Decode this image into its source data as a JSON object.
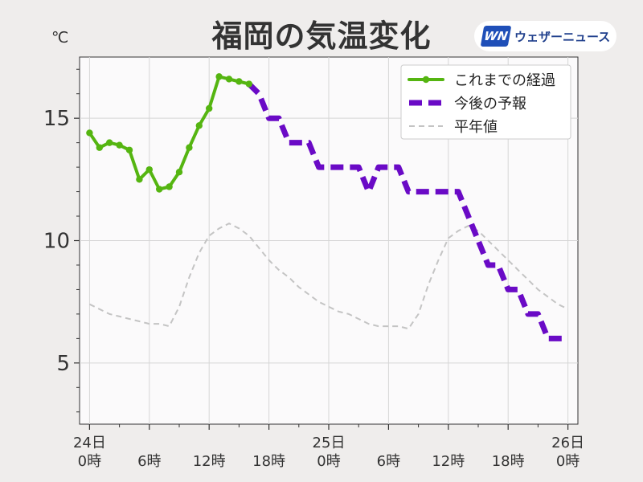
{
  "header": {
    "title": "福岡の気温変化",
    "unit": "℃",
    "brand_logo": "WN",
    "brand_name": "ウェザーニュース"
  },
  "chart_data": {
    "type": "line",
    "title": "福岡の気温変化",
    "ylabel": "℃",
    "xlabel": "",
    "ylim": [
      2.5,
      17.5
    ],
    "xlim": [
      -1,
      49
    ],
    "grid": true,
    "legend_position": "top-right",
    "y_ticks": [
      5,
      10,
      15
    ],
    "x_ticks": [
      {
        "x": 0,
        "label": [
          "24日",
          "0時"
        ]
      },
      {
        "x": 6,
        "label": [
          "",
          "6時"
        ]
      },
      {
        "x": 12,
        "label": [
          "",
          "12時"
        ]
      },
      {
        "x": 18,
        "label": [
          "",
          "18時"
        ]
      },
      {
        "x": 24,
        "label": [
          "25日",
          "0時"
        ]
      },
      {
        "x": 30,
        "label": [
          "",
          "6時"
        ]
      },
      {
        "x": 36,
        "label": [
          "",
          "12時"
        ]
      },
      {
        "x": 42,
        "label": [
          "",
          "18時"
        ]
      },
      {
        "x": 48,
        "label": [
          "26日",
          "0時"
        ]
      }
    ],
    "series": [
      {
        "name": "これまでの経過",
        "style": "solid-markers",
        "color": "#55b511",
        "x": [
          0,
          1,
          2,
          3,
          4,
          5,
          6,
          7,
          8,
          9,
          10,
          11,
          12,
          13,
          14,
          15,
          16
        ],
        "y": [
          14.4,
          13.8,
          14.0,
          13.9,
          13.7,
          12.5,
          12.9,
          12.1,
          12.2,
          12.8,
          13.8,
          14.7,
          15.4,
          16.7,
          16.6,
          16.5,
          16.4
        ]
      },
      {
        "name": "今後の予報",
        "style": "dashed-step",
        "color": "#6a0ac6",
        "x": [
          16,
          17,
          18,
          19,
          20,
          21,
          22,
          23,
          24,
          25,
          26,
          27,
          28,
          29,
          30,
          31,
          32,
          33,
          34,
          35,
          36,
          37,
          38,
          39,
          40,
          41,
          42,
          43,
          44,
          45,
          46,
          47,
          48
        ],
        "y": [
          16.4,
          16,
          15,
          15,
          14,
          14,
          14,
          13,
          13,
          13,
          13,
          13,
          12,
          13,
          13,
          13,
          12,
          12,
          12,
          12,
          12,
          12,
          11,
          10,
          9,
          9,
          8,
          8,
          7,
          7,
          6,
          6,
          6
        ]
      },
      {
        "name": "平年値",
        "style": "dashed-thin",
        "color": "#c4c4c4",
        "x": [
          0,
          1,
          2,
          3,
          4,
          5,
          6,
          7,
          8,
          9,
          10,
          11,
          12,
          13,
          14,
          15,
          16,
          17,
          18,
          19,
          20,
          21,
          22,
          23,
          24,
          25,
          26,
          27,
          28,
          29,
          30,
          31,
          32,
          33,
          34,
          35,
          36,
          37,
          38,
          39,
          40,
          41,
          42,
          43,
          44,
          45,
          46,
          47,
          48
        ],
        "y": [
          7.4,
          7.2,
          7.0,
          6.9,
          6.8,
          6.7,
          6.6,
          6.6,
          6.5,
          7.3,
          8.5,
          9.5,
          10.2,
          10.5,
          10.7,
          10.5,
          10.2,
          9.7,
          9.2,
          8.8,
          8.5,
          8.1,
          7.8,
          7.5,
          7.3,
          7.1,
          7.0,
          6.8,
          6.6,
          6.5,
          6.5,
          6.5,
          6.4,
          7.0,
          8.2,
          9.2,
          10.1,
          10.4,
          10.6,
          10.4,
          10.0,
          9.6,
          9.2,
          8.8,
          8.4,
          8.0,
          7.7,
          7.4,
          7.2
        ]
      }
    ]
  }
}
